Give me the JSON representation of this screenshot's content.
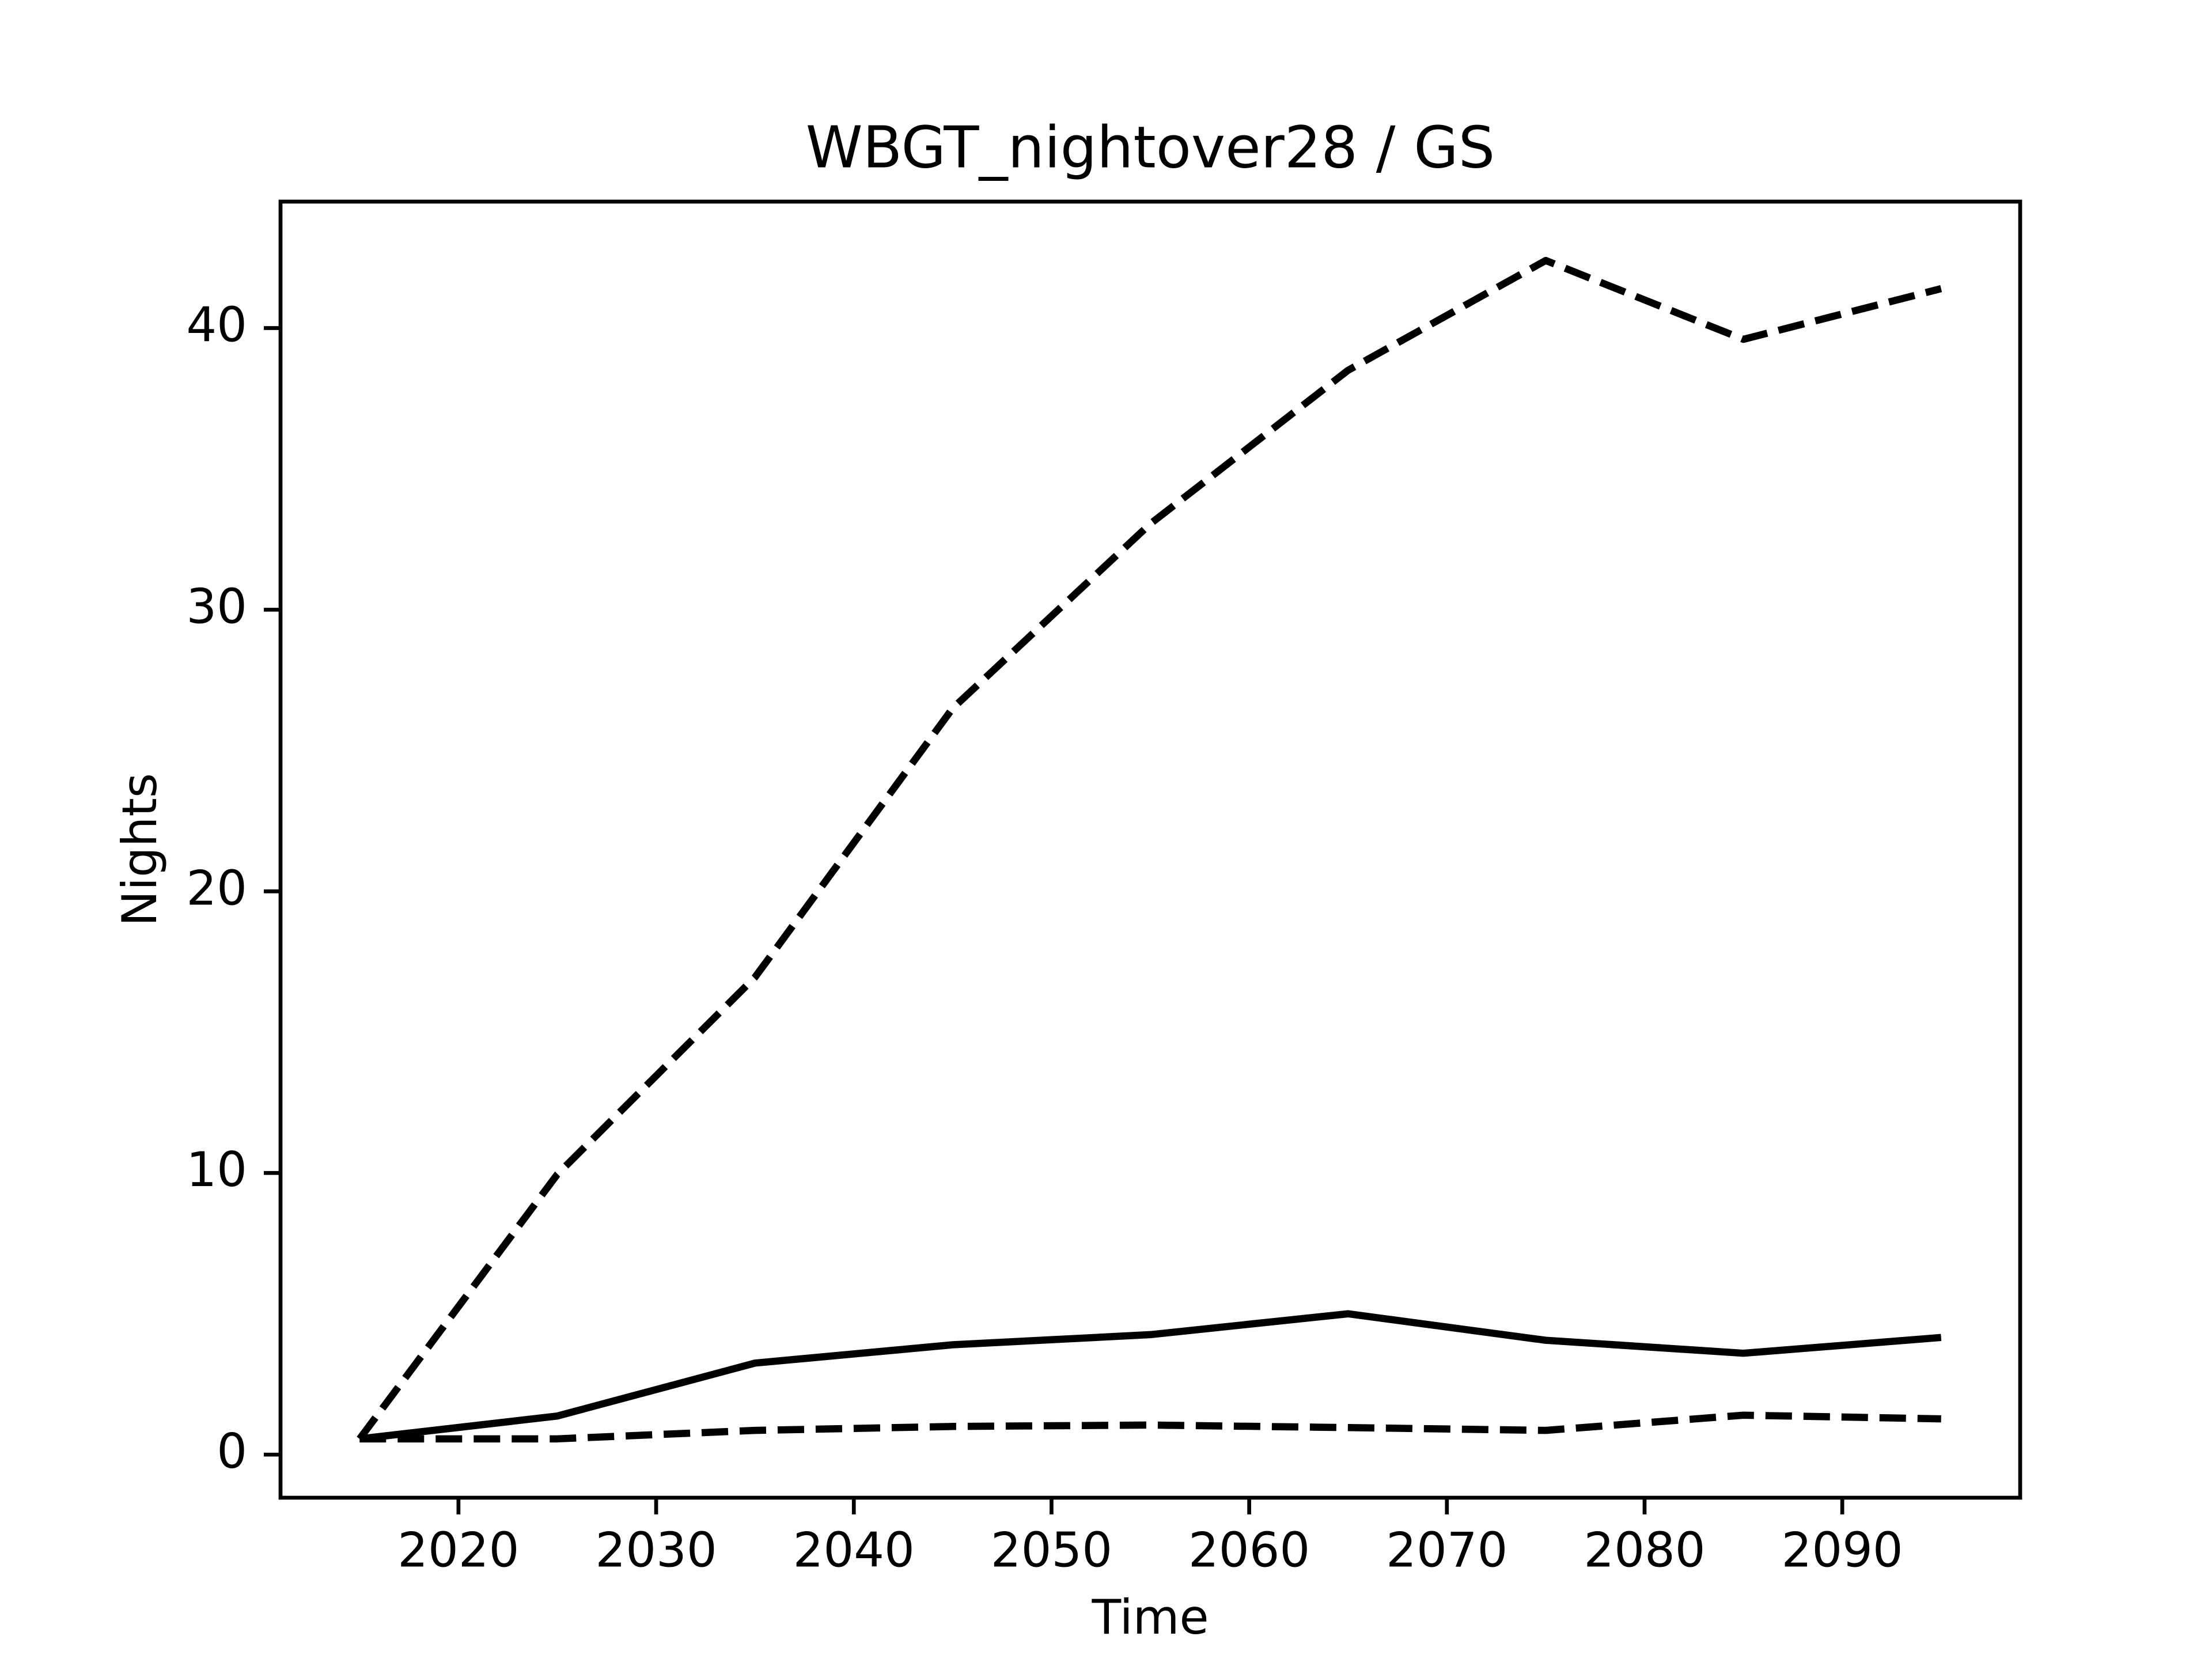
{
  "chart_data": {
    "type": "line",
    "title": "WBGT_nightover28 / GS",
    "x_label": "Time",
    "y_label": "Nights",
    "x": [
      2015,
      2025,
      2035,
      2045,
      2055,
      2065,
      2075,
      2085,
      2095
    ],
    "series": [
      {
        "color": "#000000",
        "linestyle": "dashed",
        "values": [
          0.56,
          9.95,
          16.95,
          26.5,
          33.05,
          38.5,
          42.4,
          39.6,
          41.4
        ]
      },
      {
        "color": "#000000",
        "linestyle": "solid",
        "values": [
          0.56,
          1.37,
          3.25,
          3.9,
          4.26,
          5.0,
          4.06,
          3.6,
          4.16
        ]
      },
      {
        "color": "#000000",
        "linestyle": "dashed",
        "values": [
          0.56,
          0.56,
          0.86,
          1.0,
          1.05,
          0.96,
          0.86,
          1.4,
          1.27
        ]
      }
    ],
    "xlim": [
      2011,
      2099
    ],
    "xticks": [
      2020,
      2030,
      2040,
      2050,
      2060,
      2070,
      2080,
      2090
    ],
    "ylim": [
      -1.53,
      44.49
    ],
    "yticks": [
      0,
      10,
      20,
      30,
      40
    ],
    "grid": false
  }
}
